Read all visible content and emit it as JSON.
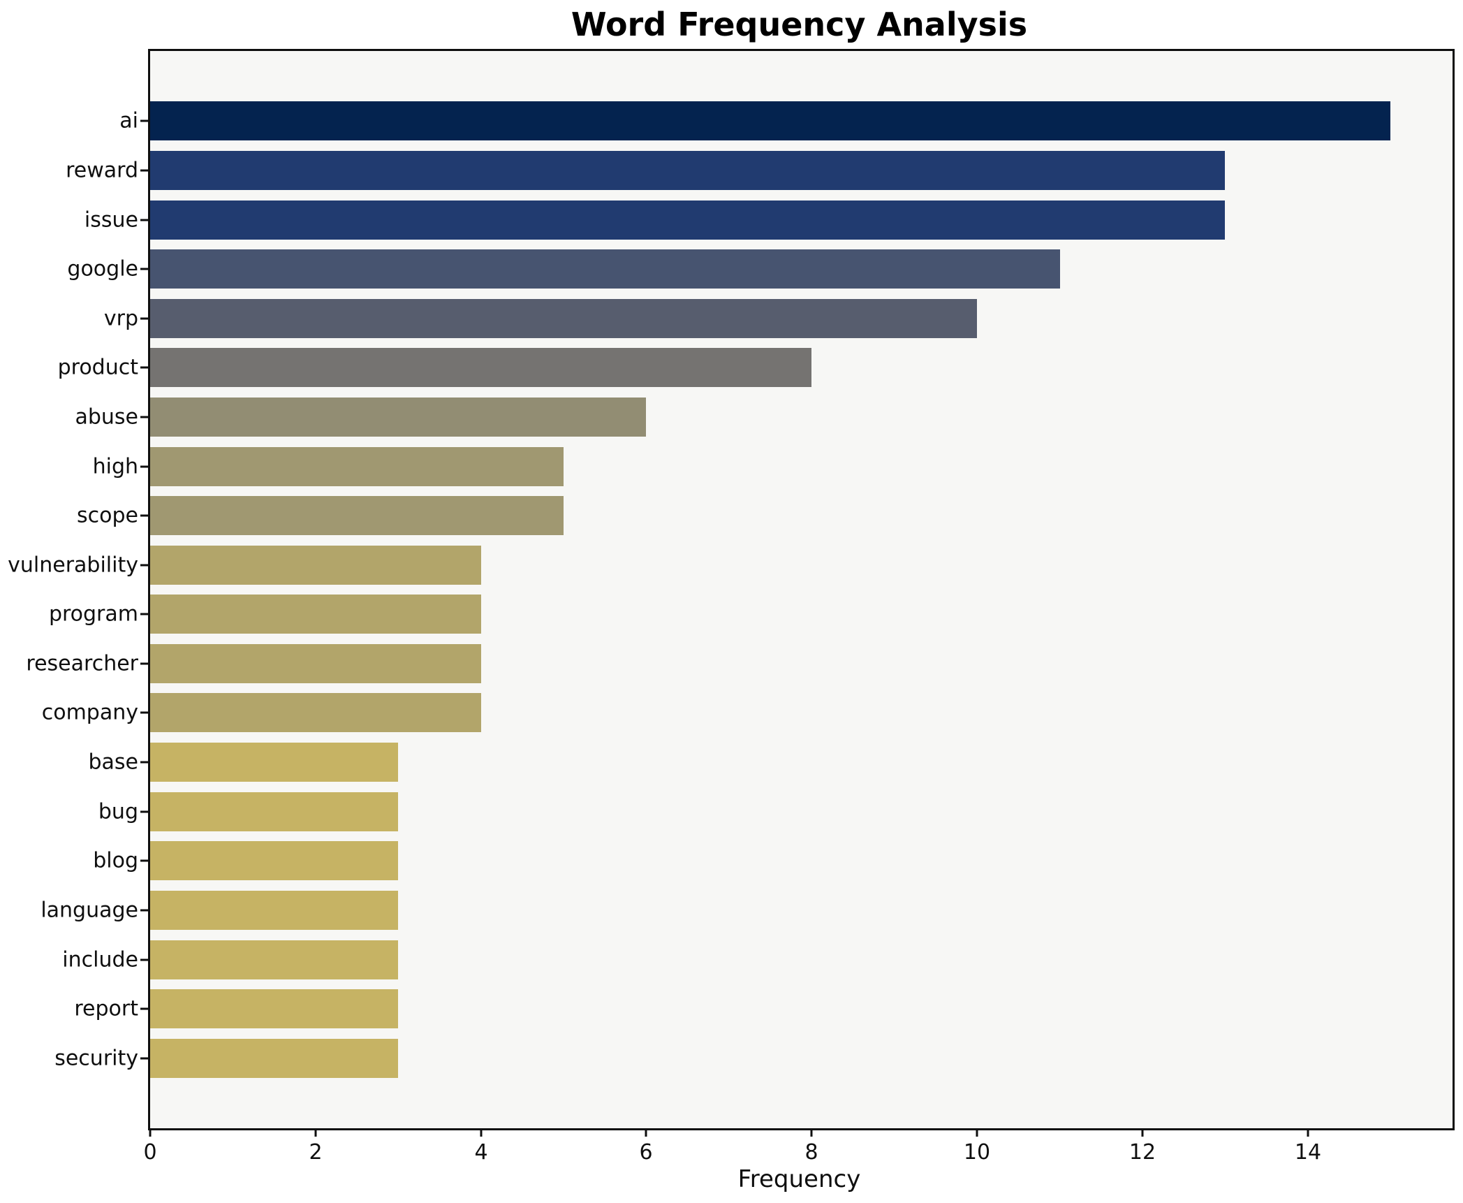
{
  "figure": {
    "background": "#ffffff",
    "plot_background": "#f7f7f5",
    "spine_color": "#0f0f0f",
    "text_color": "#0f0f0f"
  },
  "chart_data": {
    "type": "bar",
    "orientation": "horizontal",
    "title": "Word Frequency Analysis",
    "xlabel": "Frequency",
    "ylabel": "",
    "grid": false,
    "legend": false,
    "categories": [
      "ai",
      "reward",
      "issue",
      "google",
      "vrp",
      "product",
      "abuse",
      "high",
      "scope",
      "vulnerability",
      "program",
      "researcher",
      "company",
      "base",
      "bug",
      "blog",
      "language",
      "include",
      "report",
      "security"
    ],
    "values": [
      15,
      13,
      13,
      11,
      10,
      8,
      6,
      5,
      5,
      4,
      4,
      4,
      4,
      3,
      3,
      3,
      3,
      3,
      3,
      3
    ],
    "bar_colors": [
      "#04234f",
      "#213b70",
      "#213b70",
      "#475470",
      "#575d6e",
      "#757371",
      "#928d73",
      "#a09871",
      "#a09871",
      "#b2a56a",
      "#b2a56a",
      "#b2a56a",
      "#b2a56a",
      "#c6b364",
      "#c6b364",
      "#c6b364",
      "#c6b364",
      "#c6b364",
      "#c6b364",
      "#c6b364"
    ],
    "xticks": [
      0,
      2,
      4,
      6,
      8,
      10,
      12,
      14
    ],
    "xlim": [
      0,
      15.75
    ]
  }
}
